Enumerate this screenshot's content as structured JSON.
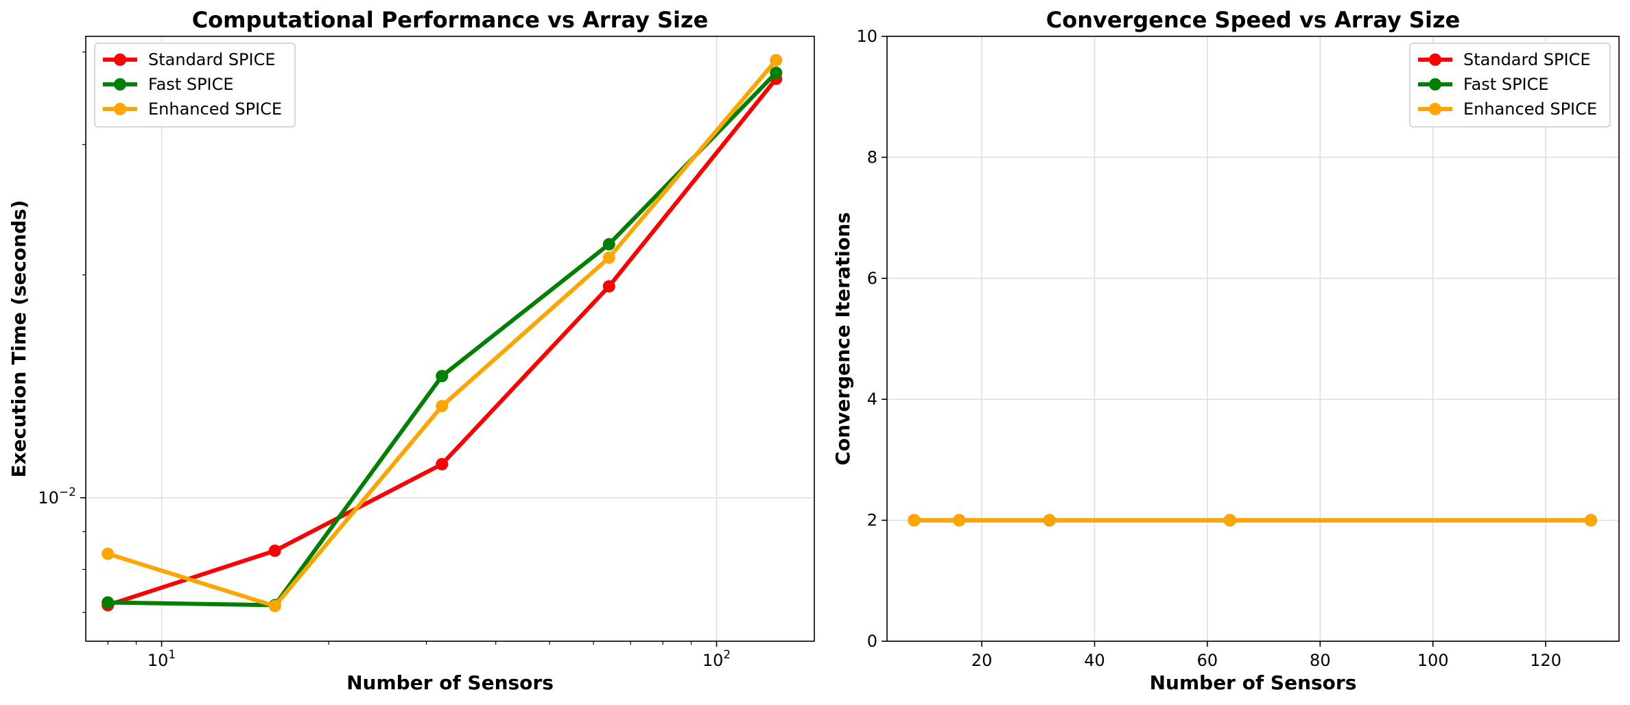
{
  "colors": {
    "Standard SPICE": "#ff0000",
    "Fast SPICE": "#008000",
    "Enhanced SPICE": "#ffa500"
  },
  "chart_data": [
    {
      "type": "line",
      "title": "Computational Performance vs Array Size",
      "xlabel": "Number of Sensors",
      "ylabel": "Execution Time (seconds)",
      "x_scale": "log",
      "y_scale": "log",
      "xlim": [
        7.3,
        150
      ],
      "ylim": [
        0.0064,
        0.042
      ],
      "x_ticks": [
        {
          "value": 10,
          "label": "10^1"
        },
        {
          "value": 100,
          "label": "10^2"
        }
      ],
      "y_ticks": [
        {
          "value": 0.01,
          "label": "10^-2"
        }
      ],
      "grid": true,
      "legend": "top-left",
      "x": [
        8,
        16,
        32,
        64,
        128
      ],
      "series": [
        {
          "name": "Standard SPICE",
          "values": [
            0.00716,
            0.00848,
            0.0111,
            0.0193,
            0.0368
          ]
        },
        {
          "name": "Fast SPICE",
          "values": [
            0.00722,
            0.00716,
            0.0146,
            0.022,
            0.0375
          ]
        },
        {
          "name": "Enhanced SPICE",
          "values": [
            0.0084,
            0.00714,
            0.0133,
            0.0211,
            0.039
          ]
        }
      ]
    },
    {
      "type": "line",
      "title": "Convergence Speed vs Array Size",
      "xlabel": "Number of Sensors",
      "ylabel": "Convergence Iterations",
      "x_scale": "linear",
      "y_scale": "linear",
      "xlim": [
        3.2,
        133
      ],
      "ylim": [
        0,
        10
      ],
      "x_ticks": [
        {
          "value": 20,
          "label": "20"
        },
        {
          "value": 40,
          "label": "40"
        },
        {
          "value": 60,
          "label": "60"
        },
        {
          "value": 80,
          "label": "80"
        },
        {
          "value": 100,
          "label": "100"
        },
        {
          "value": 120,
          "label": "120"
        }
      ],
      "y_ticks": [
        {
          "value": 0,
          "label": "0"
        },
        {
          "value": 2,
          "label": "2"
        },
        {
          "value": 4,
          "label": "4"
        },
        {
          "value": 6,
          "label": "6"
        },
        {
          "value": 8,
          "label": "8"
        },
        {
          "value": 10,
          "label": "10"
        }
      ],
      "grid": true,
      "legend": "top-right",
      "x": [
        8,
        16,
        32,
        64,
        128
      ],
      "series": [
        {
          "name": "Standard SPICE",
          "values": [
            2,
            2,
            2,
            2,
            2
          ]
        },
        {
          "name": "Fast SPICE",
          "values": [
            2,
            2,
            2,
            2,
            2
          ]
        },
        {
          "name": "Enhanced SPICE",
          "values": [
            2,
            2,
            2,
            2,
            2
          ]
        }
      ]
    }
  ]
}
